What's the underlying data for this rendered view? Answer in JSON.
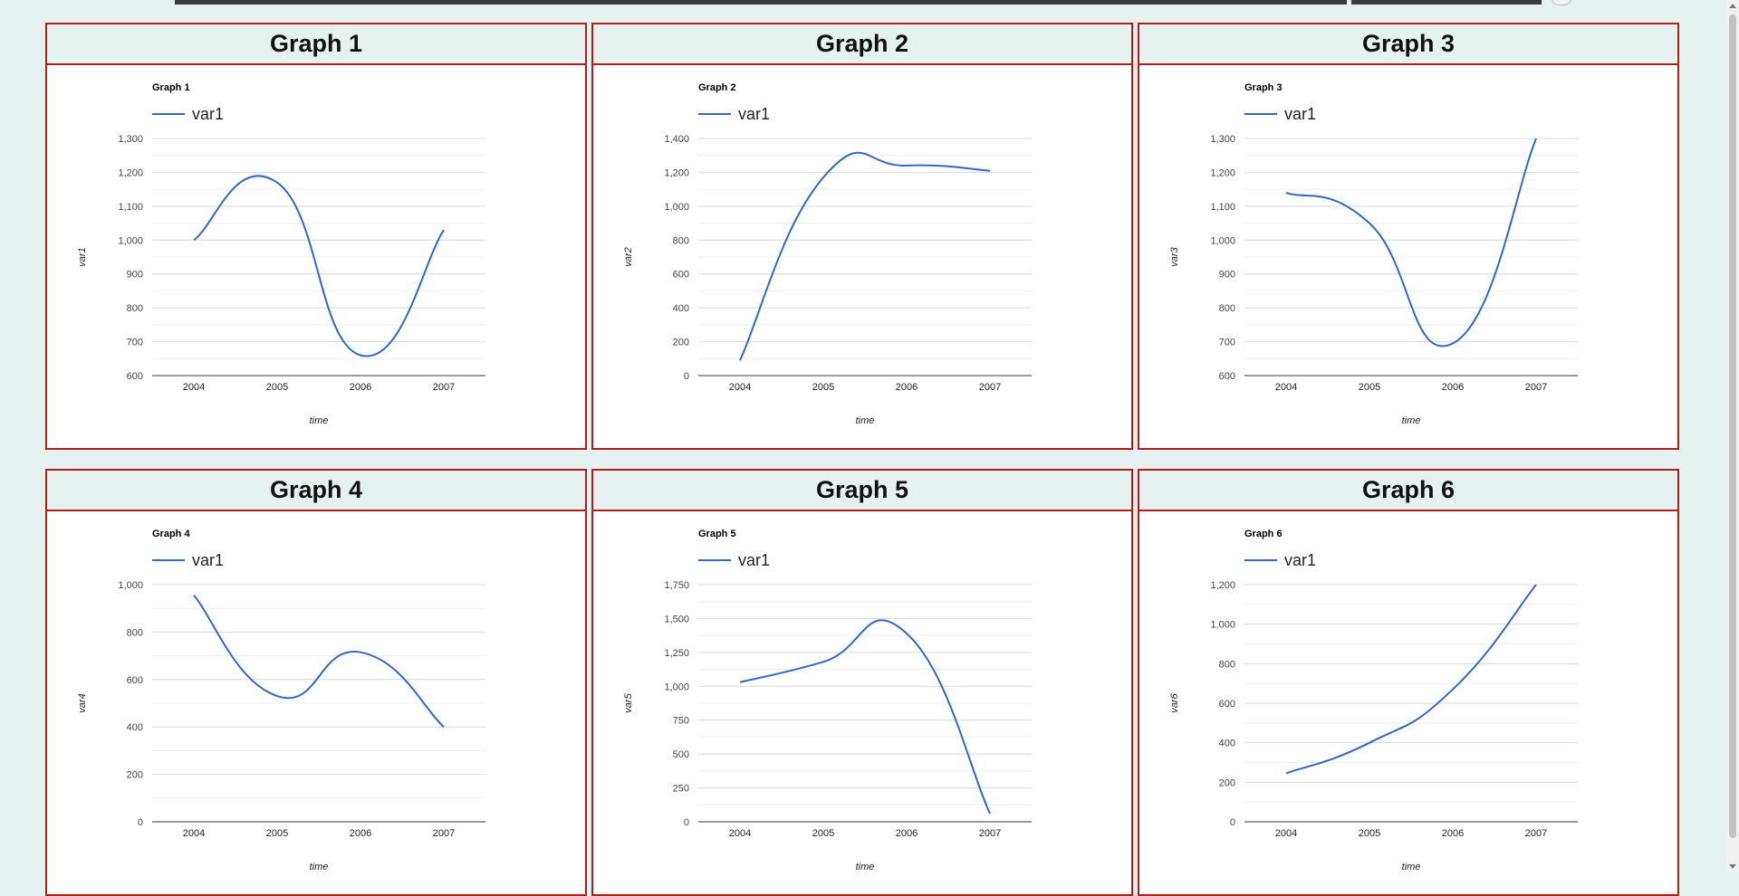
{
  "colors": {
    "line": "#3366cc",
    "panel_border": "#b11d1d",
    "header_bg": "#e6f2ef",
    "grid": "#dddddd",
    "axis": "#333333"
  },
  "panels": [
    {
      "header": "Graph 1"
    },
    {
      "header": "Graph 2"
    },
    {
      "header": "Graph 3"
    },
    {
      "header": "Graph 4"
    },
    {
      "header": "Graph 5"
    },
    {
      "header": "Graph 6"
    }
  ],
  "chart_data": [
    {
      "type": "line",
      "title": "Graph 1",
      "xlabel": "time",
      "ylabel": "var1",
      "legend": "top",
      "grid": true,
      "categories": [
        "2004",
        "2005",
        "2006",
        "2007"
      ],
      "series": [
        {
          "name": "var1",
          "values": [
            1000,
            1170,
            660,
            1030
          ]
        }
      ],
      "ylim": [
        600,
        1300
      ],
      "yticks": [
        600,
        700,
        800,
        900,
        1000,
        1100,
        1200,
        1300
      ],
      "ytick_labels": [
        "600",
        "700",
        "800",
        "900",
        "1,000",
        "1,100",
        "1,200",
        "1,300"
      ]
    },
    {
      "type": "line",
      "title": "Graph 2",
      "xlabel": "time",
      "ylabel": "var2",
      "legend": "top",
      "grid": true,
      "categories": [
        "2004",
        "2005",
        "2006",
        "2007"
      ],
      "series": [
        {
          "name": "var1",
          "values": [
            90,
            1170,
            1240,
            1210
          ]
        }
      ],
      "ylim": [
        0,
        1400
      ],
      "yticks": [
        0,
        200,
        400,
        600,
        800,
        1000,
        1200,
        1400
      ],
      "ytick_labels": [
        "0",
        "200",
        "400",
        "600",
        "800",
        "1,000",
        "1,200",
        "1,400"
      ]
    },
    {
      "type": "line",
      "title": "Graph 3",
      "xlabel": "time",
      "ylabel": "var3",
      "legend": "top",
      "grid": true,
      "categories": [
        "2004",
        "2005",
        "2006",
        "2007"
      ],
      "series": [
        {
          "name": "var1",
          "values": [
            1140,
            1050,
            695,
            1300
          ]
        }
      ],
      "ylim": [
        600,
        1300
      ],
      "yticks": [
        600,
        700,
        800,
        900,
        1000,
        1100,
        1200,
        1300
      ],
      "ytick_labels": [
        "600",
        "700",
        "800",
        "900",
        "1,000",
        "1,100",
        "1,200",
        "1,300"
      ]
    },
    {
      "type": "line",
      "title": "Graph 4",
      "xlabel": "time",
      "ylabel": "var4",
      "legend": "top",
      "grid": true,
      "categories": [
        "2004",
        "2005",
        "2006",
        "2007"
      ],
      "series": [
        {
          "name": "var1",
          "values": [
            955,
            530,
            715,
            400
          ]
        }
      ],
      "ylim": [
        0,
        1000
      ],
      "yticks": [
        0,
        200,
        400,
        600,
        800,
        1000
      ],
      "ytick_labels": [
        "0",
        "200",
        "400",
        "600",
        "800",
        "1,000"
      ]
    },
    {
      "type": "line",
      "title": "Graph 5",
      "xlabel": "time",
      "ylabel": "var5",
      "legend": "top",
      "grid": true,
      "categories": [
        "2004",
        "2005",
        "2006",
        "2007"
      ],
      "series": [
        {
          "name": "var1",
          "values": [
            1030,
            1180,
            1390,
            60
          ]
        }
      ],
      "ylim": [
        0,
        1750
      ],
      "yticks": [
        0,
        250,
        500,
        750,
        1000,
        1250,
        1500,
        1750
      ],
      "ytick_labels": [
        "0",
        "250",
        "500",
        "750",
        "1,000",
        "1,250",
        "1,500",
        "1,750"
      ]
    },
    {
      "type": "line",
      "title": "Graph 6",
      "xlabel": "time",
      "ylabel": "var6",
      "legend": "top",
      "grid": true,
      "categories": [
        "2004",
        "2005",
        "2006",
        "2007"
      ],
      "series": [
        {
          "name": "var1",
          "values": [
            245,
            400,
            670,
            1200
          ]
        }
      ],
      "ylim": [
        0,
        1200
      ],
      "yticks": [
        0,
        200,
        400,
        600,
        800,
        1000,
        1200
      ],
      "ytick_labels": [
        "0",
        "200",
        "400",
        "600",
        "800",
        "1,000",
        "1,200"
      ]
    }
  ]
}
